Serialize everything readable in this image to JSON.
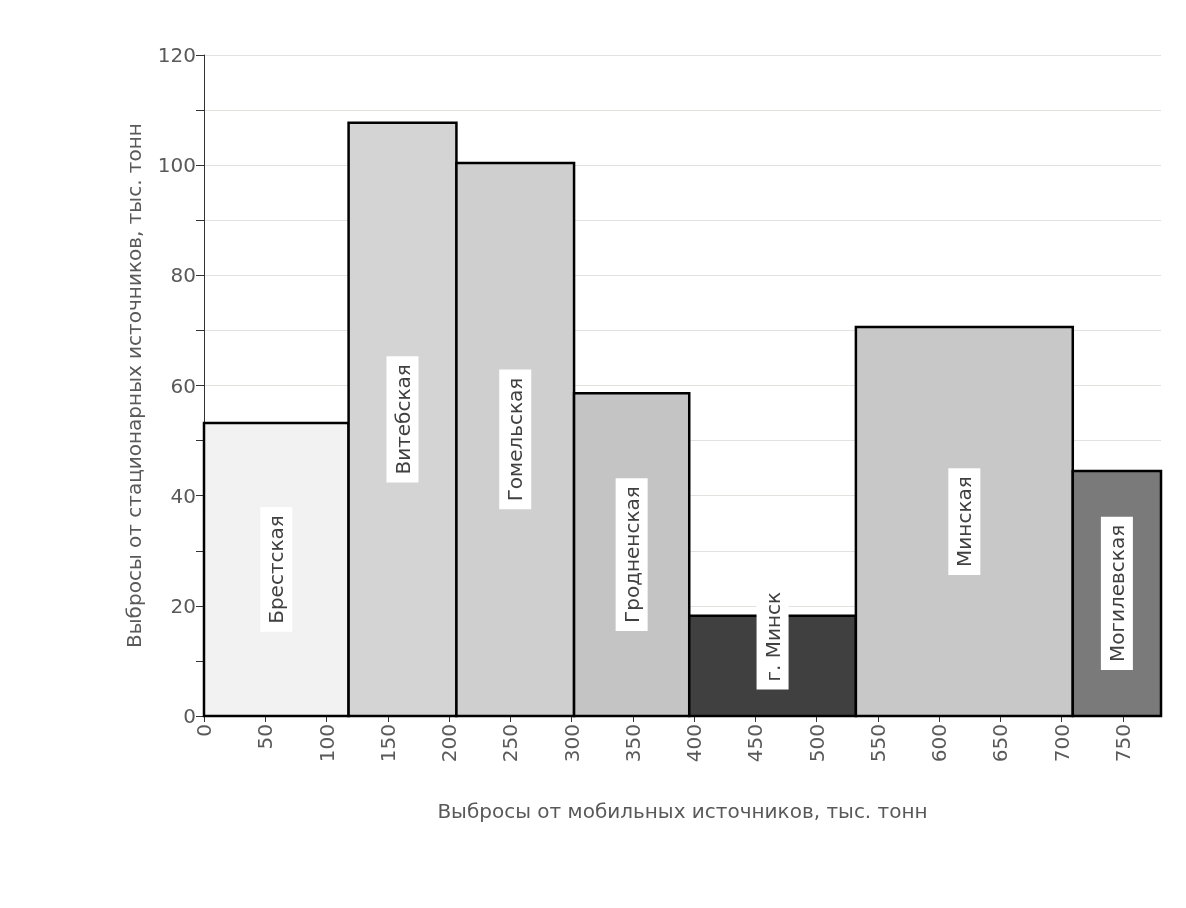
{
  "chart_data": {
    "type": "histogram",
    "xlabel": "Выбросы от мобильных источников, тыс. тонн",
    "ylabel": "Выбросы от стационарных источников, тыс. тонн",
    "bins": [
      0,
      118,
      206,
      302,
      396,
      532,
      709,
      781
    ],
    "values": [
      53.2,
      107.7,
      100.4,
      58.6,
      18.2,
      70.6,
      44.5
    ],
    "colors": [
      "#f2f2f2",
      "#d4d4d4",
      "#cfcfcf",
      "#c4c4c4",
      "#404040",
      "#c8c8c8",
      "#7a7a7a"
    ],
    "xlim": [
      0,
      781
    ],
    "xticks": [
      0,
      50,
      100,
      150,
      200,
      250,
      300,
      350,
      400,
      450,
      500,
      550,
      600,
      650,
      700,
      750
    ],
    "ylim": [
      0,
      120
    ],
    "yticks": [
      0,
      {
        "value": 10,
        "label": null
      },
      20,
      {
        "value": 30,
        "label": null
      },
      40,
      {
        "value": 50,
        "label": null
      },
      60,
      {
        "value": 70,
        "label": null
      },
      80,
      {
        "value": 90,
        "label": null
      },
      100,
      {
        "value": 110,
        "label": null
      },
      120
    ],
    "grid": "y",
    "annotations": [
      "Брестская",
      "Витебская",
      "Гомельская",
      "Гродненская",
      "г. Минск",
      "Минская",
      "Могилевская"
    ]
  }
}
